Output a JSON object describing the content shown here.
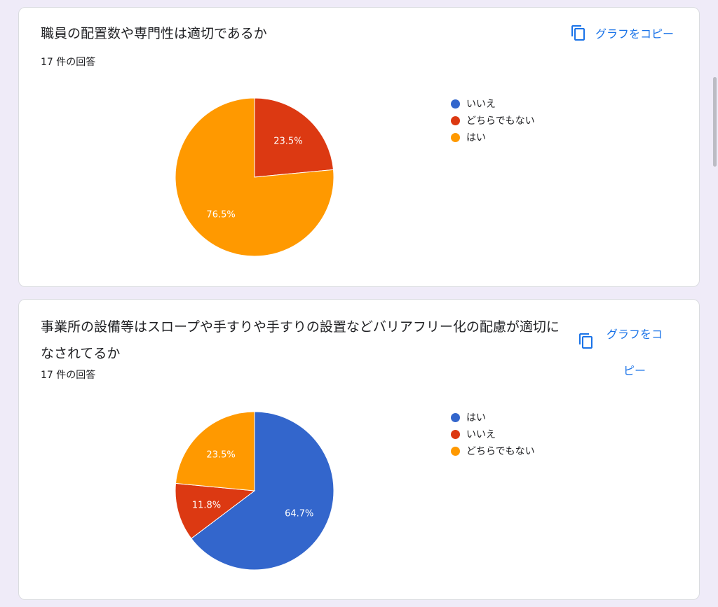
{
  "cards": [
    {
      "title": "職員の配置数や専門性は適切であるか",
      "count": "17 件の回答",
      "copy_label": "グラフをコピー"
    },
    {
      "title": "事業所の設備等はスロープや手すりや手すりの設置などバリアフリー化の配慮が適切になされてるか",
      "count": "17 件の回答",
      "copy_label": "グラフをコピー"
    }
  ],
  "chart_data": [
    {
      "type": "pie",
      "legend_position": "right",
      "labels": [
        "いいえ",
        "どちらでもない",
        "はい"
      ],
      "values": [
        0,
        23.5,
        76.5
      ],
      "colors": [
        "#3366cc",
        "#dc3912",
        "#ff9900"
      ],
      "data_labels": [
        "",
        "23.5%",
        "76.5%"
      ]
    },
    {
      "type": "pie",
      "legend_position": "right",
      "labels": [
        "はい",
        "いいえ",
        "どちらでもない"
      ],
      "values": [
        64.7,
        11.8,
        23.5
      ],
      "colors": [
        "#3366cc",
        "#dc3912",
        "#ff9900"
      ],
      "data_labels": [
        "64.7%",
        "11.8%",
        "23.5%"
      ]
    }
  ]
}
